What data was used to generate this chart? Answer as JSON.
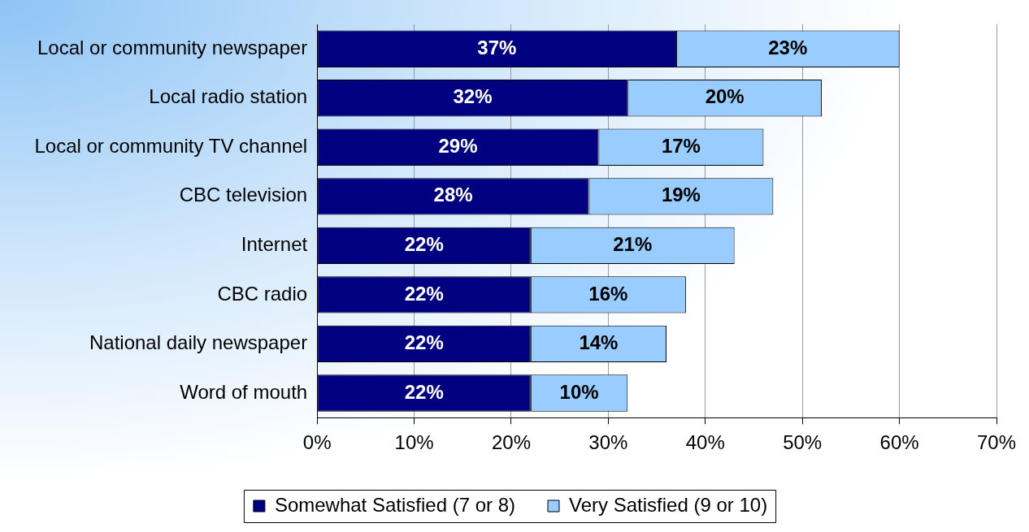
{
  "chart_data": {
    "type": "bar",
    "orientation": "horizontal",
    "stacked": true,
    "categories": [
      "Local or community newspaper",
      "Local radio station",
      "Local or community TV channel",
      "CBC television",
      "Internet",
      "CBC radio",
      "National daily newspaper",
      "Word of mouth"
    ],
    "series": [
      {
        "name": "Somewhat Satisfied (7 or 8)",
        "color": "#000080",
        "values": [
          37,
          32,
          29,
          28,
          22,
          22,
          22,
          22
        ],
        "value_labels": [
          "37%",
          "32%",
          "29%",
          "28%",
          "22%",
          "22%",
          "22%",
          "22%"
        ]
      },
      {
        "name": "Very Satisfied (9 or 10)",
        "color": "#99ccff",
        "values": [
          23,
          20,
          17,
          19,
          21,
          16,
          14,
          10
        ],
        "value_labels": [
          "23%",
          "20%",
          "17%",
          "19%",
          "21%",
          "16%",
          "14%",
          "10%"
        ]
      }
    ],
    "xlim": [
      0,
      70
    ],
    "xticks": [
      {
        "value": 0,
        "label": "0%"
      },
      {
        "value": 10,
        "label": "10%"
      },
      {
        "value": 20,
        "label": "20%"
      },
      {
        "value": 30,
        "label": "30%"
      },
      {
        "value": 40,
        "label": "40%"
      },
      {
        "value": 50,
        "label": "50%"
      },
      {
        "value": 60,
        "label": "60%"
      },
      {
        "value": 70,
        "label": "70%"
      }
    ],
    "grid": "x",
    "legend": "bottom"
  }
}
